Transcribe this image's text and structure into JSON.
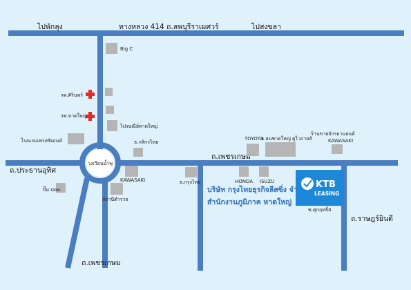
{
  "roads": {
    "west_end": "ไปพักลุง",
    "highway": "ทางหลวง 414 ถ.ลพบุรีราเมศวร์",
    "east_end": "ไปสงขลา",
    "prachathipat": "ถ.ประธานอุทิศ",
    "phetkasem_right": "ถ.เพชรเกษม",
    "phetkasem_left": "ถ.เพชรเกษม",
    "rat_uthit": "ถ.ราษฎร์ยินดี",
    "roundabout": "วงเวียนน้ำพุ"
  },
  "places": {
    "bigc": "Big C",
    "hospital_sirin": "รพ.ศิรินทร์",
    "hospital_hatyai": "รพ.หาดใหญ่",
    "post_office": "ไปรษณีย์หาดใหญ่",
    "hotel": "โรงแรมเพรสซิเดนท์",
    "kasikorn": "ธ.กสิกรไทย",
    "kawasaki_left": "KAWASAKI",
    "gas_station": "ปั๊ม ปตท.",
    "police": "สถานีตำรวจ",
    "krungthai": "ธ.กรุงไทย",
    "toyota": "TOYOTA",
    "university": "ธ.ธนชาตใหญ่ ดูไวกายส์",
    "kawasaki_right_top": "ร้านขายจักรยานยนต์",
    "kawasaki_right": "KAWASAKI",
    "honda": "HONDA",
    "isuzu": "ISUZU",
    "soi": "ซ.ศุภฤทธิ์4"
  },
  "company": {
    "line1": "บริษัท กรุงไทยธุรกิจลีสซิ่ง จำกัด",
    "line2": "สำนักงานภูมิภาค หาดใหญ่",
    "logo_text1": "KTB",
    "logo_text2": "LEASING"
  },
  "colors": {
    "background": "#dff1fb",
    "road": "#4a7ec1",
    "building": "#b5b5b5",
    "hospital_cross": "#e32b24",
    "logo_bg": "#1e88d8",
    "company_text": "#2f6fb8"
  }
}
